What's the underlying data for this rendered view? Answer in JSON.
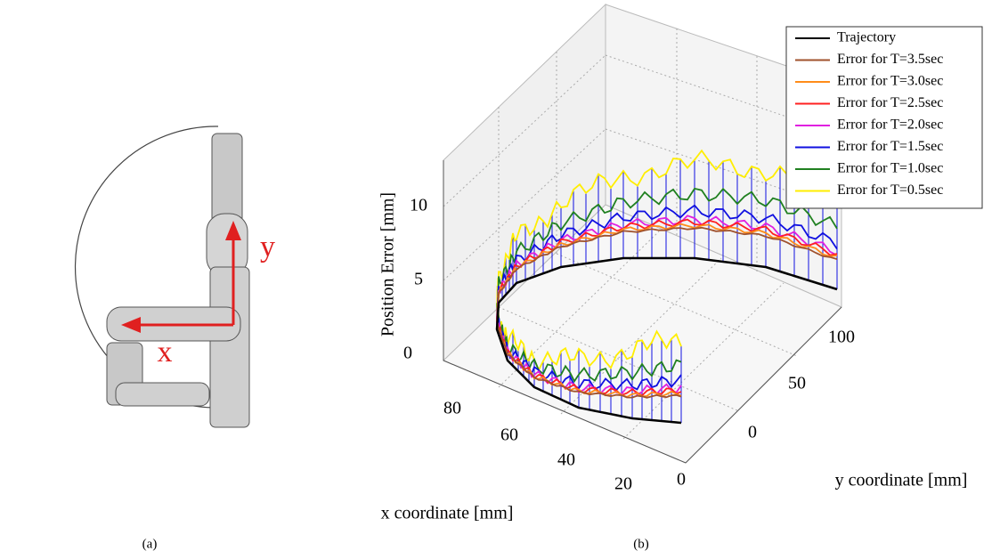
{
  "panel_a": {
    "caption": "(a)",
    "axis_x": "x",
    "axis_y": "y"
  },
  "panel_b": {
    "caption": "(b)",
    "z_label": "Position Error [mm]",
    "x_label": "x coordinate [mm]",
    "y_label": "y coordinate [mm]",
    "z_ticks": [
      "10",
      "5",
      "0"
    ],
    "x_ticks": [
      "80",
      "60",
      "40",
      "20",
      "0"
    ],
    "y_ticks": [
      "0",
      "50",
      "100"
    ],
    "legend": [
      {
        "name": "Trajectory",
        "color": "#000000"
      },
      {
        "name": "Error for T=3.5sec",
        "color": "#a0522d"
      },
      {
        "name": "Error for T=3.0sec",
        "color": "#ff8c1a"
      },
      {
        "name": "Error for T=2.5sec",
        "color": "#ff2020"
      },
      {
        "name": "Error for T=2.0sec",
        "color": "#e020e0"
      },
      {
        "name": "Error for T=1.5sec",
        "color": "#1010e0"
      },
      {
        "name": "Error for T=1.0sec",
        "color": "#208020"
      },
      {
        "name": "Error for T=0.5sec",
        "color": "#ffee00"
      }
    ]
  }
}
